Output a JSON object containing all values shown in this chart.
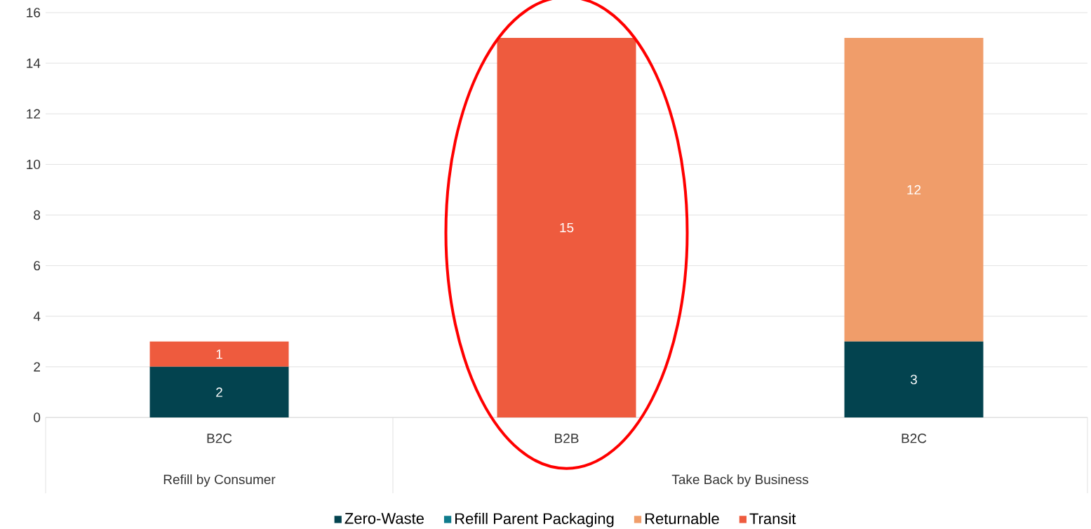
{
  "chart_data": {
    "type": "bar",
    "stacked": true,
    "categories": [
      "B2C",
      "B2B",
      "B2C"
    ],
    "series": [
      {
        "name": "Zero-Waste",
        "color": "#03434f",
        "values": [
          2,
          null,
          3
        ]
      },
      {
        "name": "Refill Parent Packaging",
        "color": "#0f7b8c",
        "values": [
          null,
          null,
          null
        ]
      },
      {
        "name": "Returnable",
        "color": "#f09d6a",
        "values": [
          null,
          null,
          12
        ]
      },
      {
        "name": "Transit",
        "color": "#ee5b3e",
        "values": [
          1,
          15,
          null
        ]
      }
    ],
    "ylim": [
      0,
      16
    ],
    "yticks": [
      0,
      2,
      4,
      6,
      8,
      10,
      12,
      14,
      16
    ],
    "grid": "y",
    "legend": "bottom",
    "data_labels": true,
    "annotations": [
      "Refill by Consumer",
      "Take Back by Business"
    ]
  }
}
